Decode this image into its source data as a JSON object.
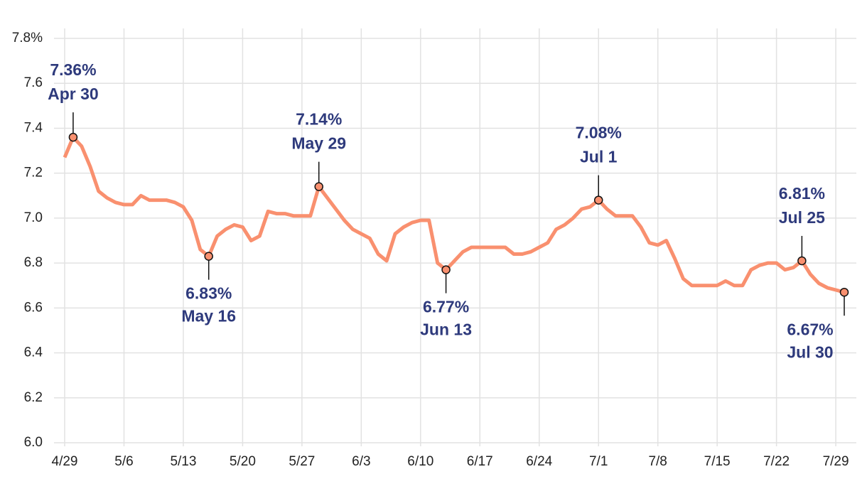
{
  "chart_data": {
    "type": "line",
    "categories": [
      "4/29",
      null,
      null,
      null,
      null,
      null,
      null,
      "5/6",
      null,
      null,
      null,
      null,
      null,
      null,
      "5/13",
      null,
      null,
      null,
      null,
      null,
      null,
      "5/20",
      null,
      null,
      null,
      null,
      null,
      null,
      "5/27",
      null,
      null,
      null,
      null,
      null,
      null,
      "6/3",
      null,
      null,
      null,
      null,
      null,
      null,
      "6/10",
      null,
      null,
      null,
      null,
      null,
      null,
      "6/17",
      null,
      null,
      null,
      null,
      null,
      null,
      "6/24",
      null,
      null,
      null,
      null,
      null,
      null,
      "7/1",
      null,
      null,
      null,
      null,
      null,
      null,
      "7/8",
      null,
      null,
      null,
      null,
      null,
      null,
      "7/15",
      null,
      null,
      null,
      null,
      null,
      null,
      "7/22",
      null,
      null,
      null,
      null,
      null,
      null,
      "7/29",
      null
    ],
    "series": [
      {
        "color": "#f9906f",
        "values": [
          7.27,
          7.36,
          7.32,
          7.23,
          7.12,
          7.09,
          7.07,
          7.06,
          7.06,
          7.1,
          7.08,
          7.08,
          7.08,
          7.07,
          7.05,
          6.99,
          6.86,
          6.83,
          6.92,
          6.95,
          6.97,
          6.96,
          6.9,
          6.92,
          7.03,
          7.02,
          7.02,
          7.01,
          7.01,
          7.01,
          7.14,
          7.09,
          7.04,
          6.99,
          6.95,
          6.93,
          6.91,
          6.84,
          6.81,
          6.93,
          6.96,
          6.98,
          6.99,
          6.99,
          6.8,
          6.77,
          6.81,
          6.85,
          6.87,
          6.87,
          6.87,
          6.87,
          6.87,
          6.84,
          6.84,
          6.85,
          6.87,
          6.89,
          6.95,
          6.97,
          7.0,
          7.04,
          7.05,
          7.08,
          7.04,
          7.01,
          7.01,
          7.01,
          6.96,
          6.89,
          6.88,
          6.9,
          6.82,
          6.73,
          6.7,
          6.7,
          6.7,
          6.7,
          6.72,
          6.7,
          6.7,
          6.77,
          6.79,
          6.8,
          6.8,
          6.77,
          6.78,
          6.81,
          6.75,
          6.71,
          6.69,
          6.68,
          6.67
        ],
        "value_labels": [
          null,
          "7.36%",
          null,
          null,
          null,
          null,
          null,
          null,
          null,
          null,
          null,
          null,
          null,
          null,
          null,
          null,
          null,
          "6.83%",
          null,
          null,
          null,
          null,
          null,
          null,
          null,
          null,
          null,
          null,
          null,
          null,
          "7.14%",
          null,
          null,
          null,
          null,
          null,
          null,
          null,
          null,
          null,
          null,
          null,
          null,
          null,
          null,
          "6.77%",
          null,
          null,
          null,
          null,
          null,
          null,
          null,
          null,
          null,
          null,
          null,
          null,
          null,
          null,
          null,
          null,
          null,
          "7.08%",
          null,
          null,
          null,
          null,
          null,
          null,
          null,
          null,
          null,
          null,
          null,
          null,
          null,
          null,
          null,
          null,
          null,
          null,
          null,
          null,
          null,
          null,
          null,
          "6.81%",
          null,
          null,
          null,
          null,
          "6.67%"
        ],
        "date_labels": [
          null,
          "Apr 30",
          null,
          null,
          null,
          null,
          null,
          null,
          null,
          null,
          null,
          null,
          null,
          null,
          null,
          null,
          null,
          "May 16",
          null,
          null,
          null,
          null,
          null,
          null,
          null,
          null,
          null,
          null,
          null,
          null,
          "May 29",
          null,
          null,
          null,
          null,
          null,
          null,
          null,
          null,
          null,
          null,
          null,
          null,
          null,
          null,
          "Jun 13",
          null,
          null,
          null,
          null,
          null,
          null,
          null,
          null,
          null,
          null,
          null,
          null,
          null,
          null,
          null,
          null,
          null,
          "Jul 1",
          null,
          null,
          null,
          null,
          null,
          null,
          null,
          null,
          null,
          null,
          null,
          null,
          null,
          null,
          null,
          null,
          null,
          null,
          null,
          null,
          null,
          null,
          null,
          "Jul 25",
          null,
          null,
          null,
          null,
          "Jul 30"
        ]
      }
    ],
    "ylim": [
      6.0,
      7.8
    ],
    "yticks": [
      {
        "value": 6.0,
        "label": "6.0"
      },
      6.2,
      6.4,
      6.6,
      6.8,
      {
        "value": 7.0,
        "label": "7.0"
      },
      7.2,
      7.4,
      7.6,
      {
        "value": 7.8,
        "label": "7.8%"
      }
    ],
    "grid": true
  }
}
